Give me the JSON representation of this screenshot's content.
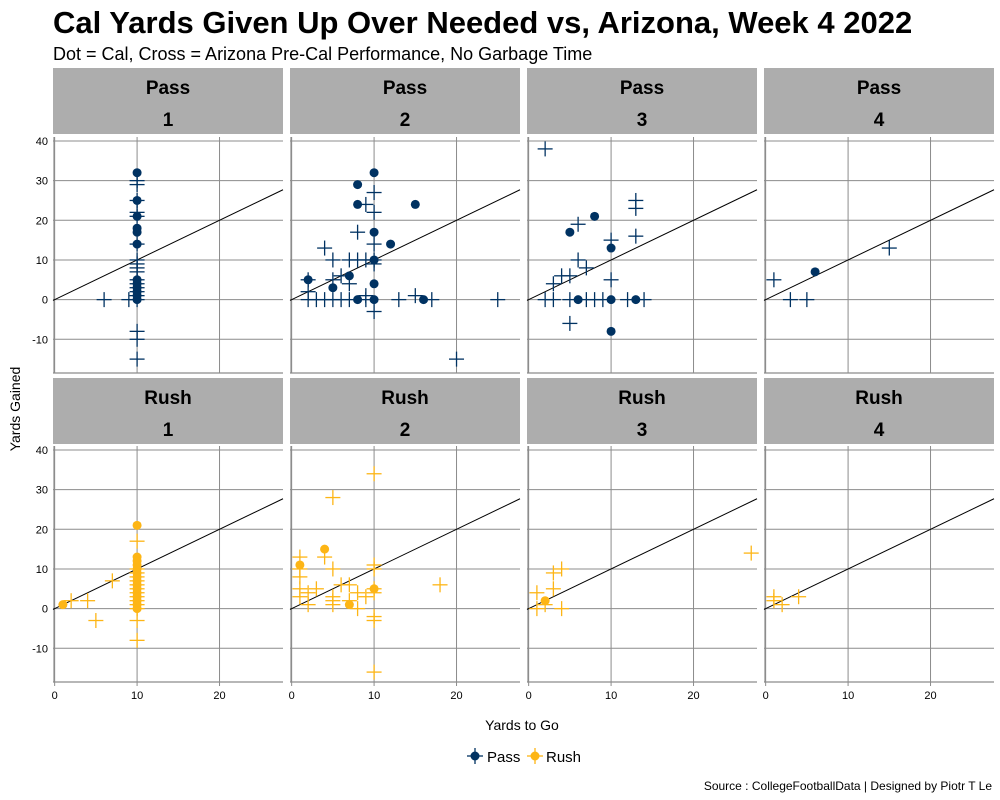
{
  "chart_data": {
    "type": "scatter",
    "title": "Cal Yards Given Up Over Needed vs, Arizona, Week 4 2022",
    "subtitle": "Dot = Cal, Cross = Arizona Pre-Cal Performance, No Garbage Time",
    "xlabel": "Yards to Go",
    "ylabel": "Yards Gained",
    "xlim": [
      -0.2,
      27.7
    ],
    "ylim": [
      -18.5,
      41
    ],
    "x_ticks": [
      "0",
      "10",
      "20"
    ],
    "y_ticks": [
      "-10",
      "0",
      "10",
      "20",
      "30",
      "40"
    ],
    "x_tick_values": [
      0,
      10,
      20
    ],
    "y_tick_values": [
      -10,
      0,
      10,
      20,
      30,
      40
    ],
    "reference_line": "y = x",
    "grid": true,
    "legend": {
      "position": "bottom",
      "entries": [
        "Pass",
        "Rush"
      ]
    },
    "colors": {
      "Pass": "#003262",
      "Rush": "#FDB515",
      "strip": "#ADADAD",
      "grid": "#8C8C8C"
    },
    "source": "Source : CollegeFootballData | Designed by Piotr T Le",
    "panels": [
      {
        "type": "Pass",
        "down": "1",
        "dots": [
          [
            10,
            32
          ],
          [
            10,
            25
          ],
          [
            10,
            21
          ],
          [
            10,
            18
          ],
          [
            10,
            17
          ],
          [
            10,
            14
          ],
          [
            10,
            5
          ],
          [
            10,
            4
          ],
          [
            10,
            3
          ],
          [
            10,
            2
          ],
          [
            10,
            1
          ],
          [
            10,
            0
          ]
        ],
        "crosses": [
          [
            10,
            30
          ],
          [
            10,
            29
          ],
          [
            10,
            25
          ],
          [
            10,
            22
          ],
          [
            10,
            21
          ],
          [
            10,
            14
          ],
          [
            10,
            10
          ],
          [
            10,
            9
          ],
          [
            10,
            8
          ],
          [
            10,
            7
          ],
          [
            10,
            5
          ],
          [
            10,
            4
          ],
          [
            10,
            3
          ],
          [
            10,
            2
          ],
          [
            10,
            1
          ],
          [
            10,
            0
          ],
          [
            6,
            0
          ],
          [
            9,
            0
          ],
          [
            10,
            -8
          ],
          [
            10,
            -10
          ],
          [
            10,
            -15
          ]
        ]
      },
      {
        "type": "Pass",
        "down": "2",
        "dots": [
          [
            10,
            32
          ],
          [
            8,
            29
          ],
          [
            8,
            24
          ],
          [
            15,
            24
          ],
          [
            10,
            17
          ],
          [
            12,
            14
          ],
          [
            10,
            10
          ],
          [
            7,
            6
          ],
          [
            2,
            5
          ],
          [
            5,
            3
          ],
          [
            10,
            4
          ],
          [
            8,
            0
          ],
          [
            10,
            0
          ],
          [
            16,
            0
          ]
        ],
        "crosses": [
          [
            10,
            27
          ],
          [
            9,
            24
          ],
          [
            10,
            22
          ],
          [
            8,
            17
          ],
          [
            4,
            13
          ],
          [
            10,
            14
          ],
          [
            5,
            10
          ],
          [
            7,
            10
          ],
          [
            8,
            10
          ],
          [
            9,
            10
          ],
          [
            10,
            10
          ],
          [
            10,
            9
          ],
          [
            5,
            5
          ],
          [
            6,
            6
          ],
          [
            7,
            4
          ],
          [
            2,
            2
          ],
          [
            2,
            5
          ],
          [
            2,
            0
          ],
          [
            3,
            0
          ],
          [
            4,
            0
          ],
          [
            5,
            0
          ],
          [
            6,
            0
          ],
          [
            7,
            0
          ],
          [
            9,
            1
          ],
          [
            9,
            0
          ],
          [
            10,
            -3
          ],
          [
            13,
            0
          ],
          [
            15,
            1
          ],
          [
            17,
            0
          ],
          [
            25,
            0
          ],
          [
            20,
            -15
          ]
        ]
      },
      {
        "type": "Pass",
        "down": "3",
        "dots": [
          [
            8,
            21
          ],
          [
            5,
            17
          ],
          [
            10,
            13
          ],
          [
            6,
            0
          ],
          [
            10,
            0
          ],
          [
            13,
            0
          ],
          [
            10,
            -8
          ]
        ],
        "crosses": [
          [
            2,
            38
          ],
          [
            13,
            25
          ],
          [
            13,
            23
          ],
          [
            6,
            19
          ],
          [
            13,
            16
          ],
          [
            10,
            15
          ],
          [
            6,
            10
          ],
          [
            7,
            8
          ],
          [
            4,
            6
          ],
          [
            5,
            6
          ],
          [
            3,
            4
          ],
          [
            10,
            5
          ],
          [
            2,
            0
          ],
          [
            3,
            0
          ],
          [
            5,
            0
          ],
          [
            7,
            0
          ],
          [
            8,
            0
          ],
          [
            9,
            0
          ],
          [
            12,
            0
          ],
          [
            14,
            0
          ],
          [
            5,
            -6
          ]
        ]
      },
      {
        "type": "Pass",
        "down": "4",
        "dots": [
          [
            6,
            7
          ]
        ],
        "crosses": [
          [
            1,
            5
          ],
          [
            3,
            0
          ],
          [
            5,
            0
          ],
          [
            15,
            13
          ]
        ]
      },
      {
        "type": "Rush",
        "down": "1",
        "dots": [
          [
            1,
            1
          ],
          [
            10,
            21
          ],
          [
            10,
            13
          ],
          [
            10,
            12
          ],
          [
            10,
            11
          ],
          [
            10,
            10
          ],
          [
            10,
            9
          ],
          [
            10,
            8
          ],
          [
            10,
            7
          ],
          [
            10,
            6
          ],
          [
            10,
            5
          ],
          [
            10,
            4
          ],
          [
            10,
            3
          ],
          [
            10,
            2
          ],
          [
            10,
            1
          ],
          [
            10,
            0
          ]
        ],
        "crosses": [
          [
            2,
            2
          ],
          [
            4,
            2
          ],
          [
            5,
            -3
          ],
          [
            7,
            7
          ],
          [
            10,
            17
          ],
          [
            10,
            10
          ],
          [
            10,
            9
          ],
          [
            10,
            8
          ],
          [
            10,
            7
          ],
          [
            10,
            6
          ],
          [
            10,
            5
          ],
          [
            10,
            4
          ],
          [
            10,
            3
          ],
          [
            10,
            2
          ],
          [
            10,
            1
          ],
          [
            10,
            0
          ],
          [
            10,
            -3
          ],
          [
            10,
            -8
          ]
        ]
      },
      {
        "type": "Rush",
        "down": "2",
        "dots": [
          [
            1,
            11
          ],
          [
            4,
            15
          ],
          [
            7,
            1
          ],
          [
            10,
            5
          ]
        ],
        "crosses": [
          [
            10,
            34
          ],
          [
            5,
            28
          ],
          [
            1,
            13
          ],
          [
            1,
            10
          ],
          [
            1,
            8
          ],
          [
            1,
            5
          ],
          [
            1,
            3
          ],
          [
            4,
            13
          ],
          [
            5,
            10
          ],
          [
            3,
            5
          ],
          [
            2,
            4
          ],
          [
            2,
            1
          ],
          [
            5,
            2
          ],
          [
            5,
            1
          ],
          [
            5,
            3
          ],
          [
            6,
            6
          ],
          [
            7,
            6
          ],
          [
            7,
            2
          ],
          [
            8,
            4
          ],
          [
            8,
            0
          ],
          [
            9,
            3
          ],
          [
            10,
            10
          ],
          [
            10,
            11
          ],
          [
            10,
            5
          ],
          [
            10,
            4
          ],
          [
            10,
            -2
          ],
          [
            10,
            -3
          ],
          [
            10,
            -16
          ],
          [
            18,
            6
          ]
        ]
      },
      {
        "type": "Rush",
        "down": "3",
        "dots": [
          [
            2,
            2
          ]
        ],
        "crosses": [
          [
            1,
            4
          ],
          [
            1,
            0
          ],
          [
            2,
            1
          ],
          [
            3,
            9
          ],
          [
            4,
            10
          ],
          [
            3,
            5
          ],
          [
            4,
            0
          ],
          [
            27,
            14
          ]
        ]
      },
      {
        "type": "Rush",
        "down": "4",
        "dots": [],
        "crosses": [
          [
            1,
            3
          ],
          [
            1,
            2
          ],
          [
            2,
            1
          ],
          [
            4,
            3
          ]
        ]
      }
    ]
  }
}
